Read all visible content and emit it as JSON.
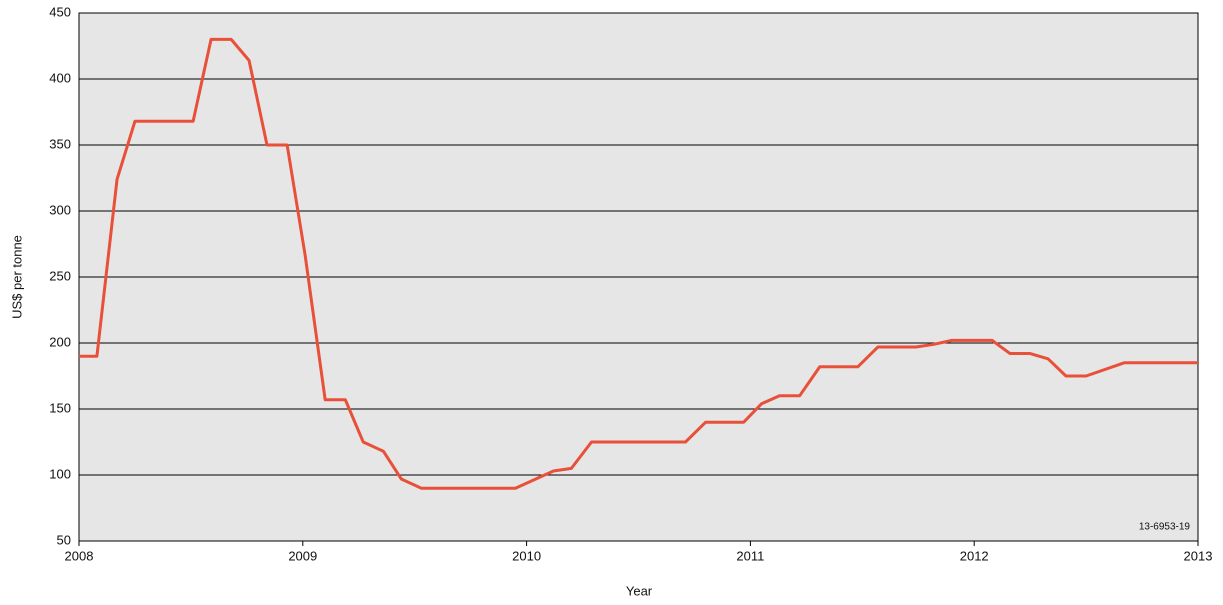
{
  "chart_data": {
    "type": "line",
    "x_label": "Year",
    "y_label": "US$ per tonne",
    "annotation": "13-6953-19",
    "x": [
      2008,
      2008.08,
      2008.17,
      2008.25,
      2008.51,
      2008.59,
      2008.68,
      2008.76,
      2008.84,
      2008.93,
      2009.01,
      2009.1,
      2009.19,
      2009.27,
      2009.36,
      2009.44,
      2009.53,
      2009.95,
      2010.12,
      2010.2,
      2010.29,
      2010.71,
      2010.8,
      2010.97,
      2011.05,
      2011.13,
      2011.22,
      2011.31,
      2011.48,
      2011.57,
      2011.74,
      2011.82,
      2011.9,
      2012.08,
      2012.16,
      2012.25,
      2012.33,
      2012.41,
      2012.5,
      2012.67,
      2013
    ],
    "series": [
      {
        "color": "#e8503a",
        "values": [
          190,
          190,
          324,
          368,
          368,
          430,
          430,
          414,
          350,
          350,
          267,
          157,
          157,
          125,
          118,
          97,
          90,
          90,
          103,
          105,
          125,
          125,
          140,
          140,
          154,
          160,
          160,
          182,
          182,
          197,
          197,
          199,
          202,
          202,
          192,
          192,
          188,
          175,
          175,
          185,
          185
        ]
      }
    ],
    "xlim": [
      2008,
      2013
    ],
    "xticks": [
      2008,
      2009,
      2010,
      2011,
      2012,
      2013
    ],
    "ylim": [
      50,
      450
    ],
    "yticks": [
      50,
      100,
      150,
      200,
      250,
      300,
      350,
      400,
      450
    ],
    "grid": true,
    "background": "#e6e6e6"
  }
}
